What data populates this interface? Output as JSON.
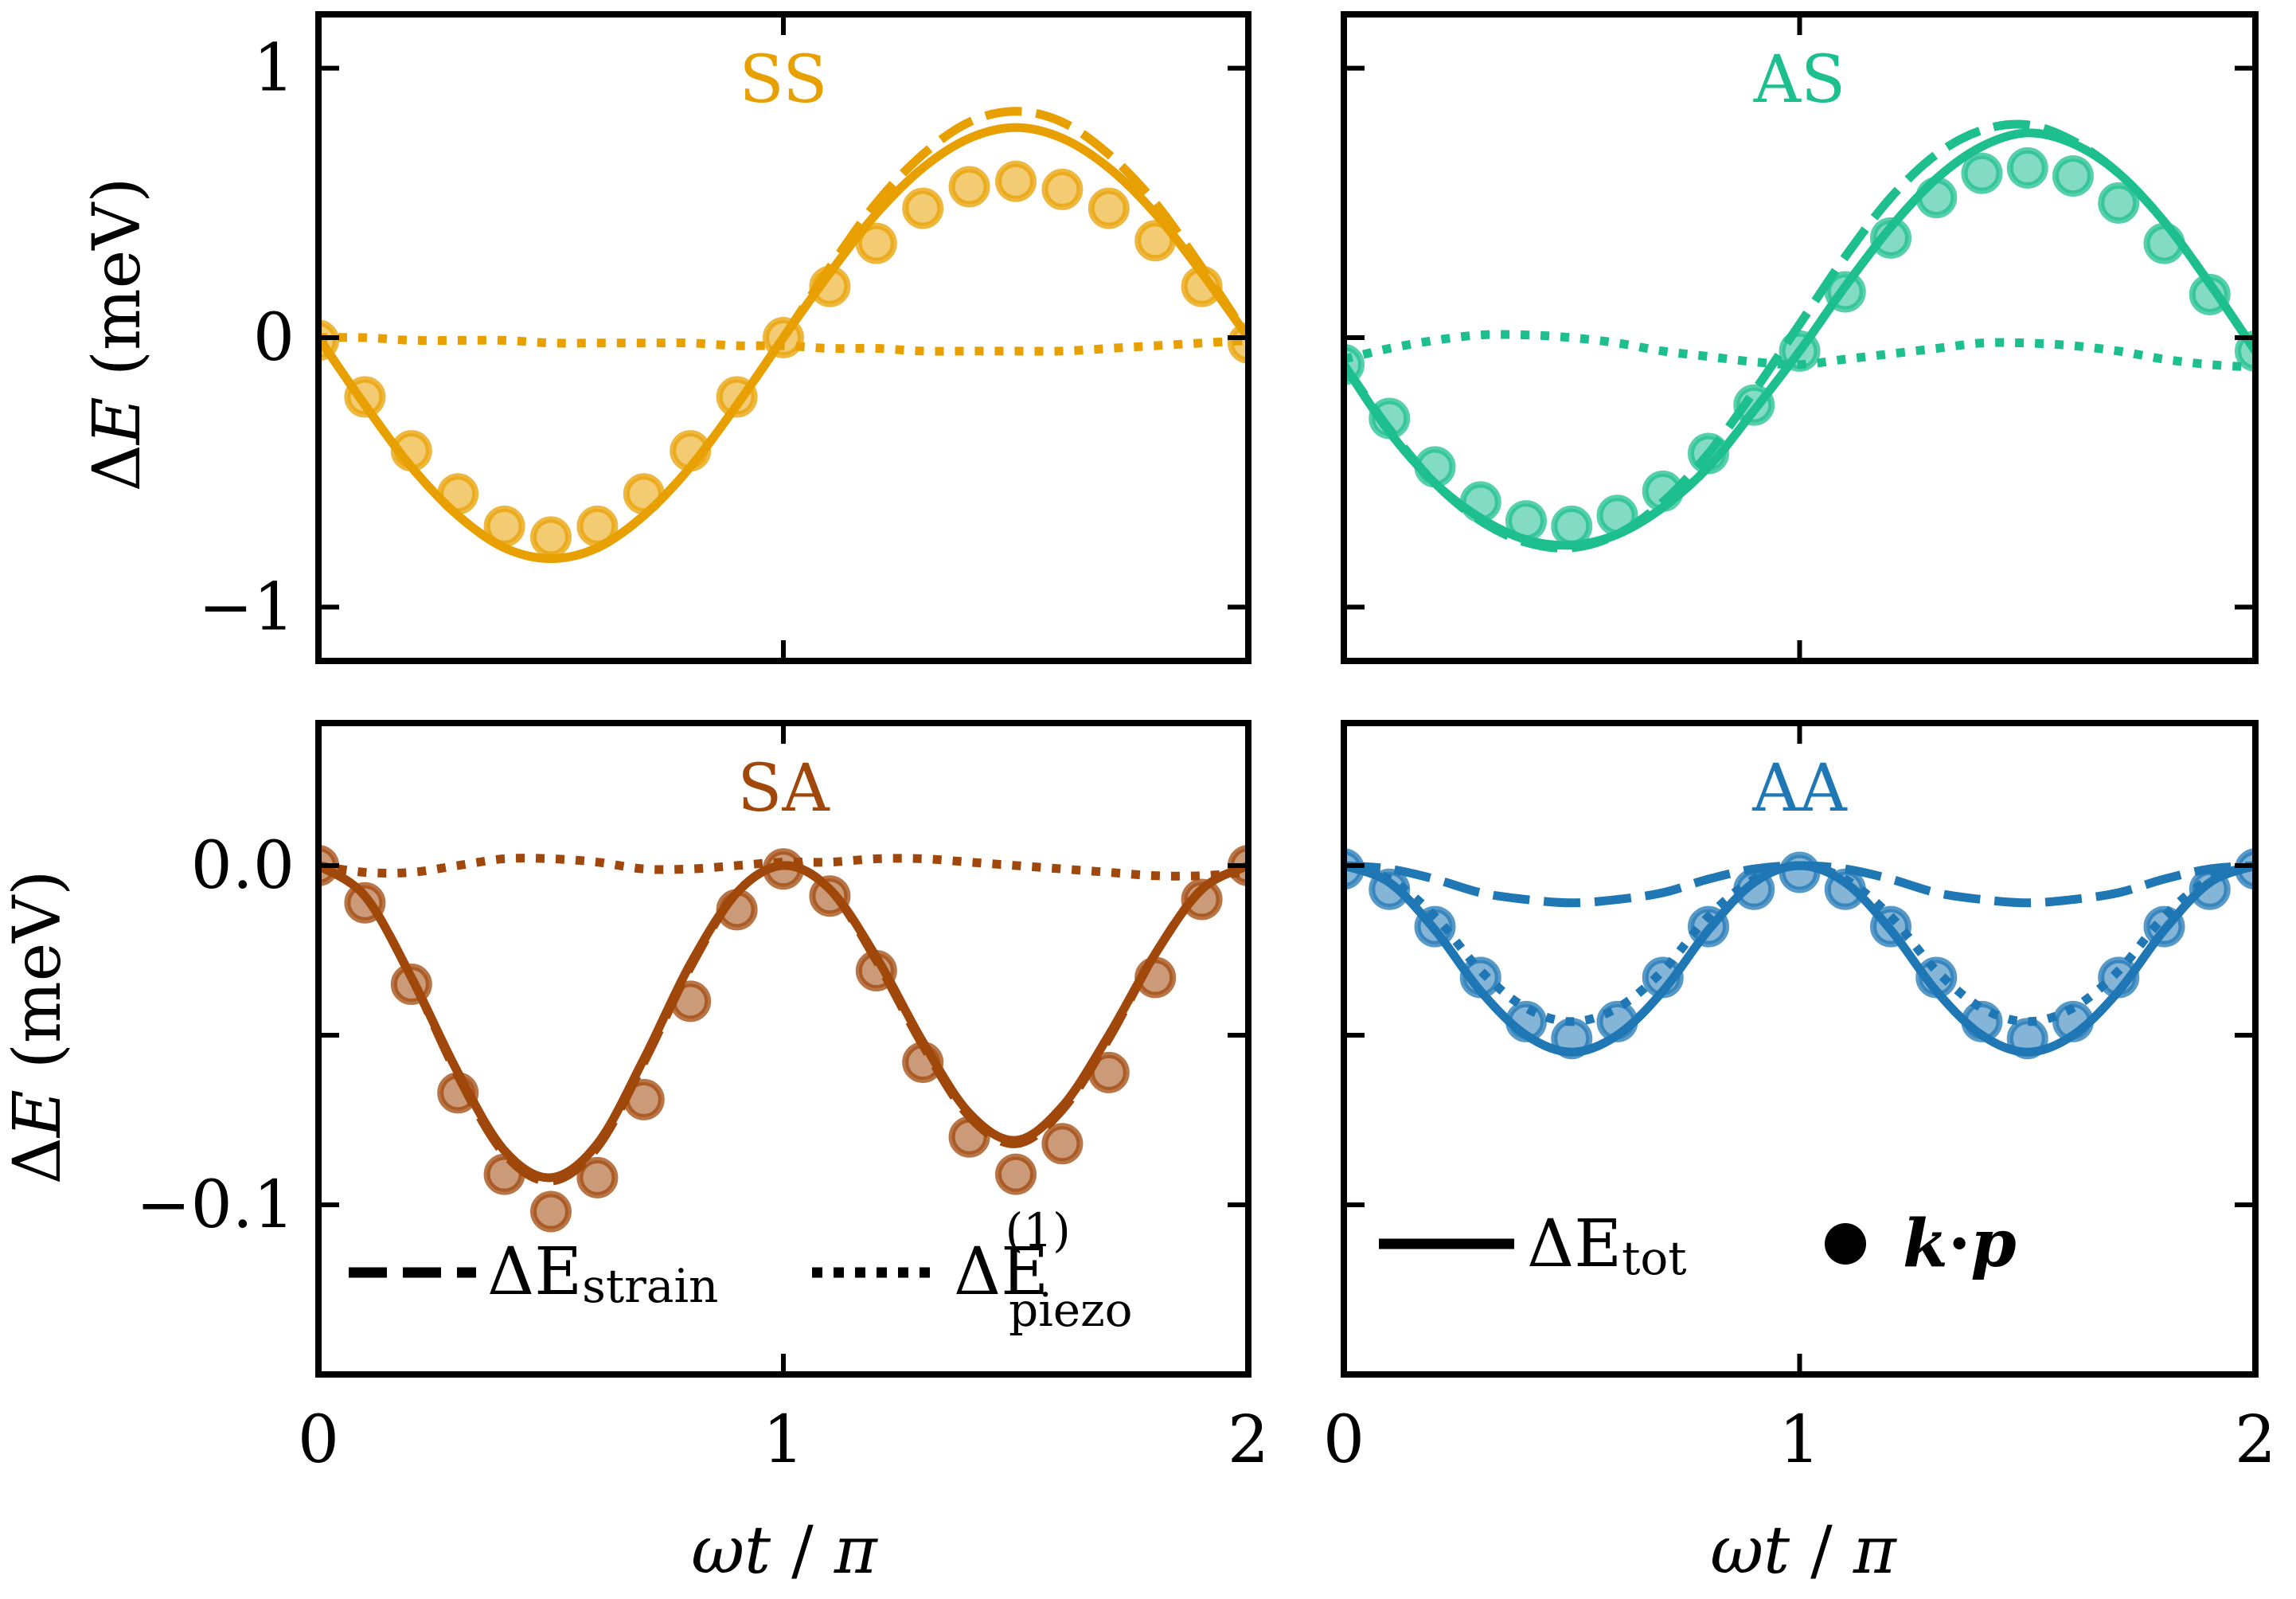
{
  "chart_data": [
    {
      "type": "line",
      "title": "SS",
      "color": "#E8A000",
      "xlabel": "",
      "ylabel": "ΔE (meV)",
      "xlim": [
        0,
        2
      ],
      "ylim": [
        -1.2,
        1.2
      ],
      "yticks": [
        {
          "value": 1,
          "label": "1"
        },
        {
          "value": 0,
          "label": "0"
        },
        {
          "value": -1,
          "label": "−1"
        }
      ],
      "xticks": [
        0,
        1,
        2
      ],
      "series": [
        {
          "name": "ΔE_tot",
          "style": "solid",
          "x": [
            0,
            0.1,
            0.2,
            0.3,
            0.4,
            0.5,
            0.6,
            0.7,
            0.8,
            0.9,
            1.0,
            1.1,
            1.2,
            1.3,
            1.4,
            1.5,
            1.6,
            1.7,
            1.8,
            1.9,
            2.0
          ],
          "values": [
            0,
            -0.25,
            -0.48,
            -0.66,
            -0.78,
            -0.82,
            -0.78,
            -0.66,
            -0.48,
            -0.25,
            0,
            0.24,
            0.46,
            0.63,
            0.74,
            0.78,
            0.74,
            0.63,
            0.46,
            0.24,
            0
          ]
        },
        {
          "name": "ΔE_strain",
          "style": "dashed",
          "x": [
            0,
            0.1,
            0.2,
            0.3,
            0.4,
            0.5,
            0.6,
            0.7,
            0.8,
            0.9,
            1.0,
            1.1,
            1.2,
            1.3,
            1.4,
            1.5,
            1.6,
            1.7,
            1.8,
            1.9,
            2.0
          ],
          "values": [
            0,
            -0.25,
            -0.48,
            -0.66,
            -0.78,
            -0.82,
            -0.78,
            -0.66,
            -0.48,
            -0.25,
            0,
            0.26,
            0.5,
            0.68,
            0.8,
            0.84,
            0.8,
            0.68,
            0.5,
            0.26,
            0
          ]
        },
        {
          "name": "ΔE_piezo^(1)",
          "style": "dotted",
          "x": [
            0,
            0.1,
            0.2,
            0.3,
            0.4,
            0.5,
            0.6,
            0.7,
            0.8,
            0.9,
            1.0,
            1.1,
            1.2,
            1.3,
            1.4,
            1.5,
            1.6,
            1.7,
            1.8,
            1.9,
            2.0
          ],
          "values": [
            0,
            0,
            -0.01,
            -0.01,
            -0.01,
            -0.02,
            -0.02,
            -0.02,
            -0.02,
            -0.03,
            -0.03,
            -0.04,
            -0.04,
            -0.05,
            -0.05,
            -0.05,
            -0.05,
            -0.04,
            -0.03,
            -0.02,
            -0.01
          ]
        },
        {
          "name": "k·p",
          "style": "markers",
          "x": [
            0,
            0.1,
            0.2,
            0.3,
            0.4,
            0.5,
            0.6,
            0.7,
            0.8,
            0.9,
            1.0,
            1.1,
            1.2,
            1.3,
            1.4,
            1.5,
            1.6,
            1.7,
            1.8,
            1.9,
            2.0
          ],
          "values": [
            -0.01,
            -0.22,
            -0.42,
            -0.58,
            -0.7,
            -0.74,
            -0.7,
            -0.58,
            -0.42,
            -0.22,
            0.0,
            0.19,
            0.35,
            0.48,
            0.56,
            0.58,
            0.55,
            0.48,
            0.36,
            0.19,
            -0.02
          ]
        }
      ]
    },
    {
      "type": "line",
      "title": "AS",
      "color": "#1DBF8F",
      "xlabel": "",
      "ylabel": "",
      "xlim": [
        0,
        2
      ],
      "ylim": [
        -1.2,
        1.2
      ],
      "yticks": [
        {
          "value": 1,
          "label": ""
        },
        {
          "value": 0,
          "label": ""
        },
        {
          "value": -1,
          "label": ""
        }
      ],
      "xticks": [
        0,
        1,
        2
      ],
      "series": [
        {
          "name": "ΔE_tot",
          "style": "solid",
          "x": [
            0,
            0.1,
            0.2,
            0.3,
            0.4,
            0.5,
            0.6,
            0.7,
            0.8,
            0.9,
            1.0,
            1.1,
            1.2,
            1.3,
            1.4,
            1.5,
            1.6,
            1.7,
            1.8,
            1.9,
            2.0
          ],
          "values": [
            -0.1,
            -0.35,
            -0.54,
            -0.67,
            -0.75,
            -0.77,
            -0.73,
            -0.63,
            -0.48,
            -0.27,
            -0.05,
            0.19,
            0.41,
            0.59,
            0.71,
            0.76,
            0.72,
            0.61,
            0.43,
            0.2,
            -0.05
          ]
        },
        {
          "name": "ΔE_strain",
          "style": "dashed",
          "x": [
            0,
            0.1,
            0.2,
            0.3,
            0.4,
            0.5,
            0.6,
            0.7,
            0.8,
            0.9,
            1.0,
            1.1,
            1.2,
            1.3,
            1.4,
            1.5,
            1.6,
            1.7,
            1.8,
            1.9,
            2.0
          ],
          "values": [
            -0.1,
            -0.34,
            -0.54,
            -0.68,
            -0.76,
            -0.78,
            -0.73,
            -0.61,
            -0.43,
            -0.2,
            0.05,
            0.3,
            0.52,
            0.68,
            0.77,
            0.79,
            0.73,
            0.61,
            0.43,
            0.2,
            -0.05
          ]
        },
        {
          "name": "ΔE_piezo^(1)",
          "style": "dotted",
          "x": [
            0,
            0.1,
            0.2,
            0.3,
            0.4,
            0.5,
            0.6,
            0.7,
            0.8,
            0.9,
            1.0,
            1.1,
            1.2,
            1.3,
            1.4,
            1.5,
            1.6,
            1.7,
            1.8,
            1.9,
            2.0
          ],
          "values": [
            -0.08,
            -0.04,
            -0.01,
            0.01,
            0.01,
            0.0,
            -0.02,
            -0.05,
            -0.07,
            -0.09,
            -0.1,
            -0.08,
            -0.06,
            -0.04,
            -0.02,
            -0.02,
            -0.03,
            -0.05,
            -0.08,
            -0.1,
            -0.11
          ]
        },
        {
          "name": "k·p",
          "style": "markers",
          "x": [
            0,
            0.1,
            0.2,
            0.3,
            0.4,
            0.5,
            0.6,
            0.7,
            0.8,
            0.9,
            1.0,
            1.1,
            1.2,
            1.3,
            1.4,
            1.5,
            1.6,
            1.7,
            1.8,
            1.9,
            2.0
          ],
          "values": [
            -0.1,
            -0.3,
            -0.48,
            -0.61,
            -0.68,
            -0.7,
            -0.66,
            -0.57,
            -0.43,
            -0.25,
            -0.05,
            0.17,
            0.37,
            0.52,
            0.61,
            0.63,
            0.6,
            0.5,
            0.35,
            0.16,
            -0.05
          ]
        }
      ]
    },
    {
      "type": "line",
      "title": "SA",
      "color": "#A0470B",
      "xlabel": "ωt / π",
      "ylabel": "ΔE (meV)",
      "xlim": [
        0,
        2
      ],
      "ylim": [
        -0.15,
        0.042
      ],
      "yticks": [
        {
          "value": 0.0,
          "label": "0.0"
        },
        {
          "value": -0.05,
          "label": ""
        },
        {
          "value": -0.1,
          "label": "−0.1"
        }
      ],
      "xticks": [
        0,
        1,
        2
      ],
      "series": [
        {
          "name": "ΔE_tot",
          "style": "solid",
          "x": [
            0,
            0.1,
            0.2,
            0.3,
            0.4,
            0.5,
            0.6,
            0.7,
            0.8,
            0.9,
            1.0,
            1.1,
            1.2,
            1.3,
            1.4,
            1.5,
            1.6,
            1.7,
            1.8,
            1.9,
            2.0
          ],
          "values": [
            0,
            -0.009,
            -0.033,
            -0.061,
            -0.084,
            -0.092,
            -0.082,
            -0.057,
            -0.029,
            -0.008,
            0,
            -0.007,
            -0.027,
            -0.052,
            -0.073,
            -0.081,
            -0.071,
            -0.05,
            -0.026,
            -0.007,
            0
          ]
        },
        {
          "name": "ΔE_strain",
          "style": "dashed",
          "x": [
            0,
            0.1,
            0.2,
            0.3,
            0.4,
            0.5,
            0.6,
            0.7,
            0.8,
            0.9,
            1.0,
            1.1,
            1.2,
            1.3,
            1.4,
            1.5,
            1.6,
            1.7,
            1.8,
            1.9,
            2.0
          ],
          "values": [
            0,
            -0.009,
            -0.033,
            -0.062,
            -0.085,
            -0.093,
            -0.083,
            -0.058,
            -0.03,
            -0.008,
            0,
            -0.007,
            -0.028,
            -0.053,
            -0.074,
            -0.082,
            -0.072,
            -0.051,
            -0.026,
            -0.007,
            0
          ]
        },
        {
          "name": "ΔE_piezo^(1)",
          "style": "dotted",
          "x": [
            0,
            0.1,
            0.2,
            0.3,
            0.4,
            0.5,
            0.6,
            0.7,
            0.8,
            0.9,
            1.0,
            1.1,
            1.2,
            1.3,
            1.4,
            1.5,
            1.6,
            1.7,
            1.8,
            1.9,
            2.0
          ],
          "values": [
            0,
            -0.002,
            -0.002,
            0,
            0.002,
            0.002,
            0.001,
            -0.001,
            -0.001,
            0,
            0.001,
            0.001,
            0.002,
            0.002,
            0.001,
            0,
            -0.001,
            -0.002,
            -0.003,
            -0.003,
            -0.002
          ]
        },
        {
          "name": "k·p",
          "style": "markers",
          "x": [
            0,
            0.1,
            0.2,
            0.3,
            0.4,
            0.5,
            0.6,
            0.7,
            0.8,
            0.9,
            1.0,
            1.1,
            1.2,
            1.3,
            1.4,
            1.5,
            1.6,
            1.7,
            1.8,
            1.9,
            2.0
          ],
          "values": [
            0,
            -0.011,
            -0.035,
            -0.067,
            -0.091,
            -0.102,
            -0.092,
            -0.069,
            -0.04,
            -0.013,
            -0.001,
            -0.009,
            -0.031,
            -0.058,
            -0.08,
            -0.091,
            -0.082,
            -0.061,
            -0.033,
            -0.01,
            0
          ]
        }
      ]
    },
    {
      "type": "line",
      "title": "AA",
      "color": "#1F77B4",
      "xlabel": "ωt / π",
      "ylabel": "",
      "xlim": [
        0,
        2
      ],
      "ylim": [
        -0.15,
        0.042
      ],
      "yticks": [
        {
          "value": 0.0,
          "label": ""
        },
        {
          "value": -0.05,
          "label": ""
        },
        {
          "value": -0.1,
          "label": ""
        }
      ],
      "xticks": [
        0,
        1,
        2
      ],
      "series": [
        {
          "name": "ΔE_tot",
          "style": "solid",
          "x": [
            0,
            0.1,
            0.2,
            0.3,
            0.4,
            0.5,
            0.6,
            0.7,
            0.8,
            0.9,
            1.0,
            1.1,
            1.2,
            1.3,
            1.4,
            1.5,
            1.6,
            1.7,
            1.8,
            1.9,
            2.0
          ],
          "values": [
            0,
            -0.005,
            -0.019,
            -0.037,
            -0.05,
            -0.055,
            -0.05,
            -0.037,
            -0.019,
            -0.005,
            0,
            -0.005,
            -0.019,
            -0.037,
            -0.05,
            -0.055,
            -0.05,
            -0.037,
            -0.019,
            -0.005,
            0
          ]
        },
        {
          "name": "ΔE_strain",
          "style": "dashed",
          "x": [
            0,
            0.1,
            0.2,
            0.3,
            0.4,
            0.5,
            0.6,
            0.7,
            0.8,
            0.9,
            1.0,
            1.1,
            1.2,
            1.3,
            1.4,
            1.5,
            1.6,
            1.7,
            1.8,
            1.9,
            2.0
          ],
          "values": [
            0,
            -0.001,
            -0.004,
            -0.008,
            -0.01,
            -0.011,
            -0.01,
            -0.008,
            -0.004,
            -0.001,
            0,
            -0.001,
            -0.004,
            -0.008,
            -0.01,
            -0.011,
            -0.01,
            -0.008,
            -0.004,
            -0.001,
            0
          ]
        },
        {
          "name": "ΔE_piezo^(1)",
          "style": "dotted",
          "x": [
            0,
            0.1,
            0.2,
            0.3,
            0.4,
            0.5,
            0.6,
            0.7,
            0.8,
            0.9,
            1.0,
            1.1,
            1.2,
            1.3,
            1.4,
            1.5,
            1.6,
            1.7,
            1.8,
            1.9,
            2.0
          ],
          "values": [
            0,
            -0.004,
            -0.015,
            -0.031,
            -0.042,
            -0.046,
            -0.042,
            -0.031,
            -0.015,
            -0.004,
            0,
            -0.004,
            -0.015,
            -0.031,
            -0.042,
            -0.046,
            -0.042,
            -0.031,
            -0.015,
            -0.004,
            0
          ]
        },
        {
          "name": "k·p",
          "style": "markers",
          "x": [
            0,
            0.1,
            0.2,
            0.3,
            0.4,
            0.5,
            0.6,
            0.7,
            0.8,
            0.9,
            1.0,
            1.1,
            1.2,
            1.3,
            1.4,
            1.5,
            1.6,
            1.7,
            1.8,
            1.9,
            2.0
          ],
          "values": [
            -0.001,
            -0.007,
            -0.018,
            -0.033,
            -0.046,
            -0.051,
            -0.046,
            -0.033,
            -0.018,
            -0.007,
            -0.002,
            -0.007,
            -0.018,
            -0.033,
            -0.046,
            -0.051,
            -0.046,
            -0.033,
            -0.018,
            -0.007,
            -0.001
          ]
        }
      ]
    }
  ],
  "axes": {
    "ylabel_prefix": "Δ",
    "ylabel_var": "E",
    "ylabel_unit": " (meV)",
    "xlabel_omega": "ω",
    "xlabel_t": "t",
    "xlabel_slash": " / ",
    "xlabel_pi": "π"
  },
  "legend": {
    "strain_main": "ΔE",
    "strain_sub": "strain",
    "piezo_main": "ΔE",
    "piezo_sub": "piezo",
    "piezo_sup": "(1)",
    "tot_main": "ΔE",
    "tot_sub": "tot",
    "kp_k": "k",
    "kp_dot": "·",
    "kp_p": "p"
  }
}
